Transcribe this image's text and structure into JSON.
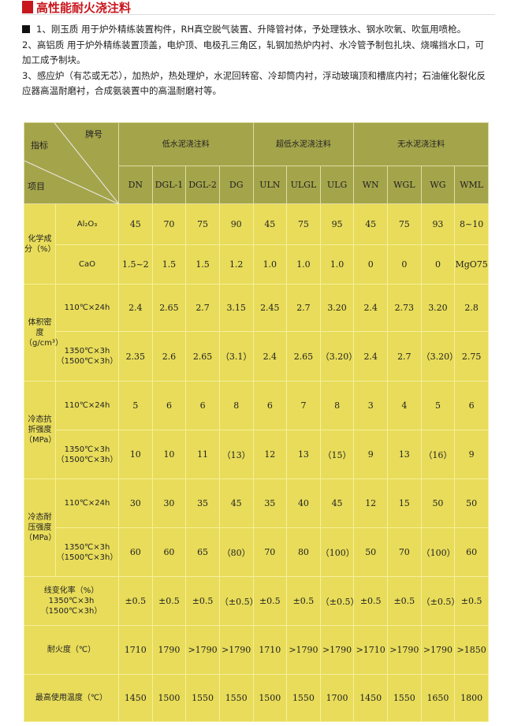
{
  "title": "高性能耐火浇注料",
  "intro": [
    "1、刚玉质 用于炉外精练装置构件，RH真空脱气装置、升降管衬体，予处理铁水、钢水吹氧、吹氩用喷枪。",
    "2、高铝质 用于炉外精练装置顶盖，电炉顶、电极孔三角区，轧钢加热炉内衬、水冷管予制包扎块、烧嘴挡水口，可加工成予制块。",
    "3、感应炉（有芯或无芯），加热炉，热处理炉，水泥回转窑、冷却筒内衬，浮动玻璃顶和槽底内衬；石油催化裂化反应器高温耐磨衬，合成氨装置中的高温耐磨衬等。"
  ],
  "table": {
    "corner": {
      "brand": "牌号",
      "index": "指标",
      "item": "项目"
    },
    "groups": [
      "低水泥浇注料",
      "超低水泥浇注料",
      "无水泥浇注料"
    ],
    "grades": [
      "DN",
      "DGL-1",
      "DGL-2",
      "DG",
      "ULN",
      "ULGL",
      "ULG",
      "WN",
      "WGL",
      "WG",
      "WML"
    ],
    "sections": [
      {
        "label": "化学成分（%）",
        "rows": [
          {
            "sub": "Al₂O₃",
            "values": [
              "45",
              "70",
              "75",
              "90",
              "45",
              "75",
              "95",
              "45",
              "75",
              "93",
              "8~10"
            ]
          },
          {
            "sub": "CaO",
            "values": [
              "1.5~2",
              "1.5",
              "1.5",
              "1.2",
              "1.0",
              "1.0",
              "1.0",
              "0",
              "0",
              "0",
              "MgO75"
            ]
          }
        ]
      },
      {
        "label": "体积密度（g/cm³）",
        "rows": [
          {
            "sub": "110℃×24h",
            "values": [
              "2.4",
              "2.65",
              "2.7",
              "3.15",
              "2.45",
              "2.7",
              "3.20",
              "2.4",
              "2.73",
              "3.20",
              "2.8"
            ]
          },
          {
            "sub": "1350℃×3h（1500℃×3h）",
            "values": [
              "2.35",
              "2.6",
              "2.65",
              "（3.1）",
              "2.4",
              "2.65",
              "（3.20）",
              "2.4",
              "2.7",
              "（3.20）",
              "2.75"
            ]
          }
        ]
      },
      {
        "label": "冷态抗折强度（MPa）",
        "rows": [
          {
            "sub": "110℃×24h",
            "values": [
              "5",
              "6",
              "6",
              "8",
              "6",
              "7",
              "8",
              "3",
              "4",
              "5",
              "6"
            ]
          },
          {
            "sub": "1350℃×3h（1500℃×3h）",
            "values": [
              "10",
              "10",
              "11",
              "（13）",
              "12",
              "13",
              "（15）",
              "9",
              "13",
              "（16）",
              "9"
            ]
          }
        ]
      },
      {
        "label": "冷态耐压强度（MPa）",
        "rows": [
          {
            "sub": "110℃×24h",
            "values": [
              "30",
              "30",
              "35",
              "45",
              "35",
              "40",
              "45",
              "12",
              "15",
              "50",
              "50"
            ]
          },
          {
            "sub": "1350℃×3h（1500℃×3h）",
            "values": [
              "60",
              "60",
              "65",
              "（80）",
              "70",
              "80",
              "（100）",
              "50",
              "70",
              "（100）",
              "60"
            ]
          }
        ]
      }
    ],
    "single_rows": [
      {
        "label": "线变化率（%）1350℃×3h（1500℃×3h）",
        "values": [
          "±0.5",
          "±0.5",
          "±0.5",
          "（±0.5）",
          "±0.5",
          "±0.5",
          "（±0.5）",
          "±0.5",
          "±0.5",
          "（±0.5）",
          "±0.5"
        ]
      },
      {
        "label": "耐火度（℃）",
        "values": [
          "1710",
          "1790",
          ">1790",
          ">1790",
          "1710",
          ">1790",
          ">1790",
          ">1710",
          ">1790",
          ">1790",
          ">1850"
        ]
      },
      {
        "label": "最高使用温度（℃）",
        "values": [
          "1450",
          "1500",
          "1550",
          "1550",
          "1500",
          "1550",
          "1700",
          "1450",
          "1550",
          "1650",
          "1800"
        ]
      }
    ]
  }
}
